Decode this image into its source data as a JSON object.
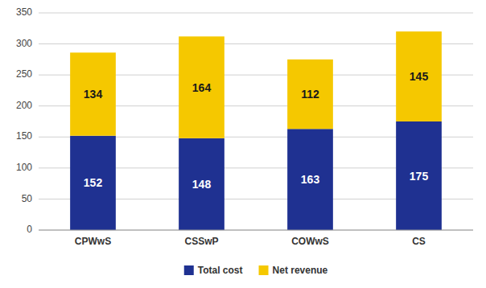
{
  "chart_data": {
    "type": "bar",
    "stacked": true,
    "categories": [
      "CPWwS",
      "CSSwP",
      "COWwS",
      "CS"
    ],
    "series": [
      {
        "name": "Total cost",
        "color": "#1F3191",
        "values": [
          152,
          148,
          163,
          175
        ]
      },
      {
        "name": "Net revenue",
        "color": "#F5C800",
        "values": [
          134,
          164,
          112,
          145
        ]
      }
    ],
    "ylim": [
      0,
      350
    ],
    "yticks": [
      0,
      50,
      100,
      150,
      200,
      250,
      300,
      350
    ],
    "grid": true,
    "legend": "bottom",
    "data_labels": true
  }
}
